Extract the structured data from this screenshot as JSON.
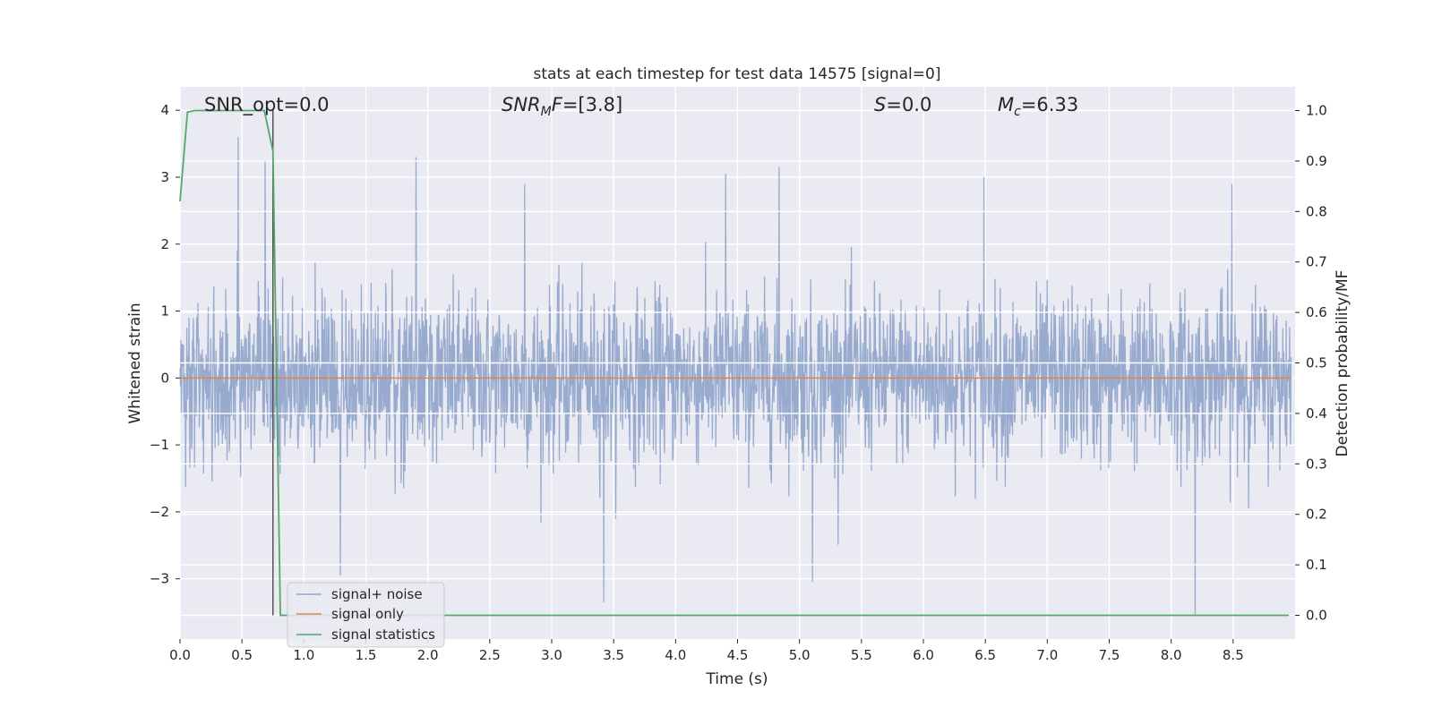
{
  "chart_data": {
    "type": "line",
    "title": "stats at each timestep for test data 14575 [signal=0]",
    "xlabel": "Time (s)",
    "ylabel": "Whitened strain",
    "ylabel_right": "Detection probability/MF",
    "xlim": [
      0.0,
      9.0
    ],
    "ylim": [
      -3.9,
      4.35
    ],
    "ylim_right": [
      -0.047,
      1.047
    ],
    "grid": true,
    "legend_position": "lower-left",
    "x_ticks": [
      "0.0",
      "0.5",
      "1.0",
      "1.5",
      "2.0",
      "2.5",
      "3.0",
      "3.5",
      "4.0",
      "4.5",
      "5.0",
      "5.5",
      "6.0",
      "6.5",
      "7.0",
      "7.5",
      "8.0",
      "8.5"
    ],
    "y_ticks": [
      "4",
      "3",
      "2",
      "1",
      "0",
      "−1",
      "−2",
      "−3"
    ],
    "y_ticks_right": [
      "1.0",
      "0.9",
      "0.8",
      "0.7",
      "0.6",
      "0.5",
      "0.4",
      "0.3",
      "0.2",
      "0.1",
      "0.0"
    ],
    "annotations": [
      {
        "key": "snr_opt",
        "text": "SNR_opt=0.0"
      },
      {
        "key": "snr_mf",
        "label": "SNR",
        "sub": "M",
        "label_suffix": "F",
        "value": "=[3.8]"
      },
      {
        "key": "s",
        "label": "S",
        "value": "=0.0"
      },
      {
        "key": "mc",
        "label": "M",
        "sub": "c",
        "value": "=6.33"
      }
    ],
    "series": [
      {
        "name": "signal+ noise",
        "color": "#8fa4cb",
        "description_values": "dense noise around 0 with typical envelope about ±1.8",
        "noise_std": 0.62,
        "peaks": [
          {
            "x": 0.47,
            "y": 3.6
          },
          {
            "x": 0.69,
            "y": 3.25
          },
          {
            "x": 1.91,
            "y": 3.3
          },
          {
            "x": 4.42,
            "y": 3.05
          },
          {
            "x": 4.85,
            "y": 3.15
          },
          {
            "x": 2.79,
            "y": 2.9
          },
          {
            "x": 6.51,
            "y": 3.0
          },
          {
            "x": 8.52,
            "y": 2.9
          },
          {
            "x": 3.43,
            "y": -3.35
          },
          {
            "x": 8.22,
            "y": -3.55
          },
          {
            "x": 5.12,
            "y": -3.05
          },
          {
            "x": 1.3,
            "y": -2.95
          }
        ]
      },
      {
        "name": "signal only",
        "color": "#dd8452",
        "values_constant": 0.0
      },
      {
        "name": "signal statistics",
        "color": "#55a868",
        "axis": "right",
        "points": [
          [
            0.0,
            0.82
          ],
          [
            0.06,
            0.997
          ],
          [
            0.12,
            1.0
          ],
          [
            0.68,
            1.0
          ],
          [
            0.75,
            0.92
          ],
          [
            0.81,
            0.0
          ],
          [
            8.95,
            0.0
          ]
        ]
      }
    ],
    "marker_line": {
      "x": 0.75,
      "color": "#555555"
    }
  }
}
